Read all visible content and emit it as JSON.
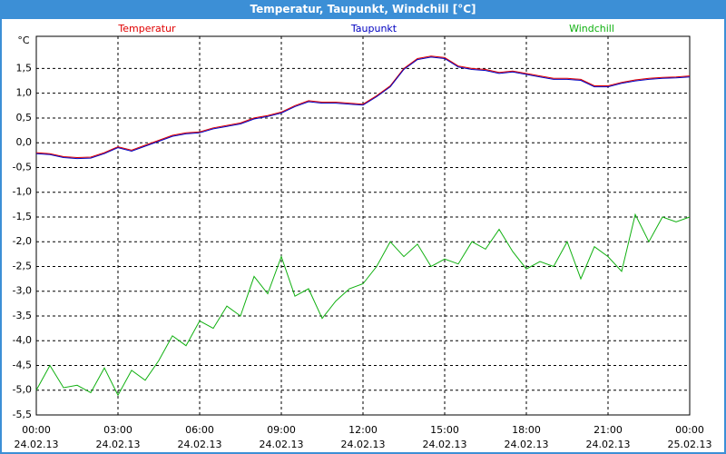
{
  "chart_data": {
    "type": "line",
    "title": "Temperatur, Taupunkt, Windchill [°C]",
    "ylabel": "°C",
    "x": [
      0,
      0.5,
      1,
      1.5,
      2,
      2.5,
      3,
      3.5,
      4,
      4.5,
      5,
      5.5,
      6,
      6.5,
      7,
      7.5,
      8,
      8.5,
      9,
      9.5,
      10,
      10.5,
      11,
      11.5,
      12,
      12.5,
      13,
      13.5,
      14,
      14.5,
      15,
      15.5,
      16,
      16.5,
      17,
      17.5,
      18,
      18.5,
      19,
      19.5,
      20,
      20.5,
      21,
      21.5,
      22,
      22.5,
      23,
      23.5,
      24
    ],
    "series": [
      {
        "name": "Temperatur",
        "color": "#e00000",
        "values": [
          -0.2,
          -0.22,
          -0.28,
          -0.3,
          -0.29,
          -0.2,
          -0.08,
          -0.15,
          -0.05,
          0.05,
          0.15,
          0.2,
          0.22,
          0.3,
          0.35,
          0.4,
          0.5,
          0.55,
          0.62,
          0.75,
          0.85,
          0.82,
          0.82,
          0.8,
          0.78,
          0.95,
          1.15,
          1.5,
          1.7,
          1.75,
          1.72,
          1.55,
          1.5,
          1.48,
          1.42,
          1.45,
          1.4,
          1.35,
          1.3,
          1.3,
          1.28,
          1.15,
          1.15,
          1.22,
          1.27,
          1.3,
          1.32,
          1.33,
          1.35
        ]
      },
      {
        "name": "Taupunkt",
        "color": "#0000c0",
        "values": [
          -0.22,
          -0.24,
          -0.3,
          -0.32,
          -0.31,
          -0.22,
          -0.1,
          -0.17,
          -0.07,
          0.03,
          0.13,
          0.18,
          0.2,
          0.28,
          0.33,
          0.38,
          0.48,
          0.53,
          0.6,
          0.73,
          0.83,
          0.8,
          0.8,
          0.78,
          0.76,
          0.93,
          1.13,
          1.48,
          1.68,
          1.73,
          1.7,
          1.53,
          1.48,
          1.46,
          1.4,
          1.43,
          1.38,
          1.33,
          1.28,
          1.28,
          1.26,
          1.13,
          1.13,
          1.2,
          1.25,
          1.28,
          1.3,
          1.31,
          1.33
        ]
      },
      {
        "name": "Windchill",
        "color": "#10b010",
        "values": [
          -5.0,
          -4.5,
          -4.95,
          -4.9,
          -5.05,
          -4.55,
          -5.1,
          -4.6,
          -4.8,
          -4.4,
          -3.9,
          -4.1,
          -3.6,
          -3.75,
          -3.3,
          -3.5,
          -2.7,
          -3.05,
          -2.3,
          -3.1,
          -2.95,
          -3.55,
          -3.2,
          -2.95,
          -2.85,
          -2.5,
          -2.0,
          -2.3,
          -2.05,
          -2.5,
          -2.35,
          -2.45,
          -2.0,
          -2.15,
          -1.75,
          -2.2,
          -2.55,
          -2.4,
          -2.5,
          -2.0,
          -2.75,
          -2.1,
          -2.3,
          -2.6,
          -1.45,
          -2.0,
          -1.5,
          -1.6,
          -1.5
        ]
      }
    ],
    "xlim": [
      0,
      24
    ],
    "xticks": [
      {
        "value": 0,
        "label": "00:00"
      },
      {
        "value": 3,
        "label": "03:00"
      },
      {
        "value": 6,
        "label": "06:00"
      },
      {
        "value": 9,
        "label": "09:00"
      },
      {
        "value": 12,
        "label": "12:00"
      },
      {
        "value": 15,
        "label": "15:00"
      },
      {
        "value": 18,
        "label": "18:00"
      },
      {
        "value": 21,
        "label": "21:00"
      },
      {
        "value": 24,
        "label": "00:00"
      }
    ],
    "xtick_dates": [
      "24.02.13",
      "24.02.13",
      "24.02.13",
      "24.02.13",
      "24.02.13",
      "24.02.13",
      "24.02.13",
      "24.02.13",
      "25.02.13"
    ],
    "ylim": [
      -5.5,
      2.15
    ],
    "yticks": [
      {
        "value": 1.5,
        "label": "1,5"
      },
      {
        "value": 1,
        "label": "1,0"
      },
      {
        "value": 0.5,
        "label": "0,5"
      },
      {
        "value": 0,
        "label": "0,0"
      },
      {
        "value": -0.5,
        "label": "-0,5"
      },
      {
        "value": -1,
        "label": "-1,0"
      },
      {
        "value": -1.5,
        "label": "-1,5"
      },
      {
        "value": -2,
        "label": "-2,0"
      },
      {
        "value": -2.5,
        "label": "-2,5"
      },
      {
        "value": -3,
        "label": "-3,0"
      },
      {
        "value": -3.5,
        "label": "-3,5"
      },
      {
        "value": -4,
        "label": "-4,0"
      },
      {
        "value": -4.5,
        "label": "-4,5"
      },
      {
        "value": -5,
        "label": "-5,0"
      },
      {
        "value": -5.5,
        "label": "-5,5"
      }
    ],
    "grid": true
  }
}
